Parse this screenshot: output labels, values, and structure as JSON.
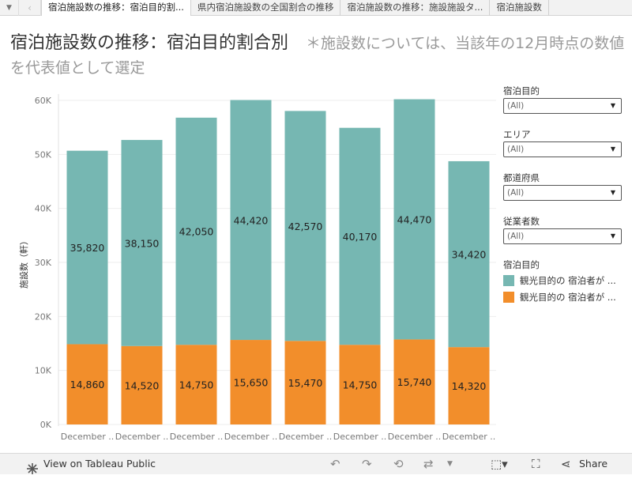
{
  "tabs": [
    {
      "label": "宿泊施設数の推移：宿泊目的割...",
      "active": true
    },
    {
      "label": "県内宿泊施設数の全国割合の推移",
      "active": false
    },
    {
      "label": "宿泊施設数の推移：施設施設タ...",
      "active": false
    },
    {
      "label": "宿泊施設数",
      "active": false
    }
  ],
  "title": "宿泊施設数の推移：宿泊目的割合別",
  "note": "＊施設数については、当該年の12月時点の数値を代表値として選定",
  "filters": [
    {
      "label": "宿泊目的",
      "value": "(All)"
    },
    {
      "label": "エリア",
      "value": "(All)"
    },
    {
      "label": "都道府県",
      "value": "(All)"
    },
    {
      "label": "従業者数",
      "value": "(All)"
    }
  ],
  "legend": {
    "title": "宿泊目的",
    "items": [
      {
        "label": "観光目的の 宿泊者が ...",
        "color": "#76b7b2"
      },
      {
        "label": "観光目的の 宿泊者が ...",
        "color": "#f28e2b"
      }
    ]
  },
  "chart_data": {
    "type": "bar",
    "stacked": true,
    "categories": [
      "December ..",
      "December ..",
      "December ..",
      "December ..",
      "December ..",
      "December ..",
      "December ..",
      "December .."
    ],
    "series": [
      {
        "name": "観光目的の 宿泊者が ...",
        "color": "#f28e2b",
        "values": [
          14860,
          14520,
          14750,
          15650,
          15470,
          14750,
          15740,
          14320
        ]
      },
      {
        "name": "観光目的の 宿泊者が ...",
        "color": "#76b7b2",
        "values": [
          35820,
          38150,
          42050,
          44420,
          42570,
          40170,
          44470,
          34420
        ]
      }
    ],
    "data_labels": {
      "bottom": [
        "14,860",
        "14,520",
        "14,750",
        "15,650",
        "15,470",
        "14,750",
        "15,740",
        "14,320"
      ],
      "top": [
        "35,820",
        "38,150",
        "42,050",
        "44,420",
        "42,570",
        "40,170",
        "44,470",
        "34,420"
      ]
    },
    "ylabel": "施設数（軒）",
    "yticks": [
      0,
      10000,
      20000,
      30000,
      40000,
      50000,
      60000
    ],
    "ytick_labels": [
      "0K",
      "10K",
      "20K",
      "30K",
      "40K",
      "50K",
      "60K"
    ],
    "ylim": [
      0,
      60000
    ],
    "grid": true,
    "legend_position": "right"
  },
  "footer": {
    "view_label": "View on Tableau Public",
    "share_label": "Share"
  }
}
